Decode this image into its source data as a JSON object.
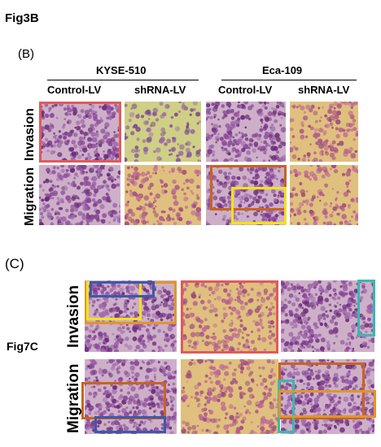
{
  "fig3b": {
    "title": "Fig3B",
    "panel_label": "(B)",
    "groups": [
      "KYSE-510",
      "Eca-109"
    ],
    "columns": [
      "Control-LV",
      "shRNA-LV",
      "Control-LV",
      "shRNA-LV"
    ],
    "rows": [
      "Invasion",
      "Migration"
    ]
  },
  "fig7c": {
    "title": "Fig7C",
    "panel_label": "(C)",
    "rows": [
      "Invasion",
      "Migration"
    ]
  },
  "highlight_colors": {
    "red": "#e05a5a",
    "yellow": "#f2e21a",
    "orange": "#e0962a",
    "brown_orange": "#c8641e",
    "blue": "#3c5aa8",
    "teal": "#3ab8b0"
  }
}
